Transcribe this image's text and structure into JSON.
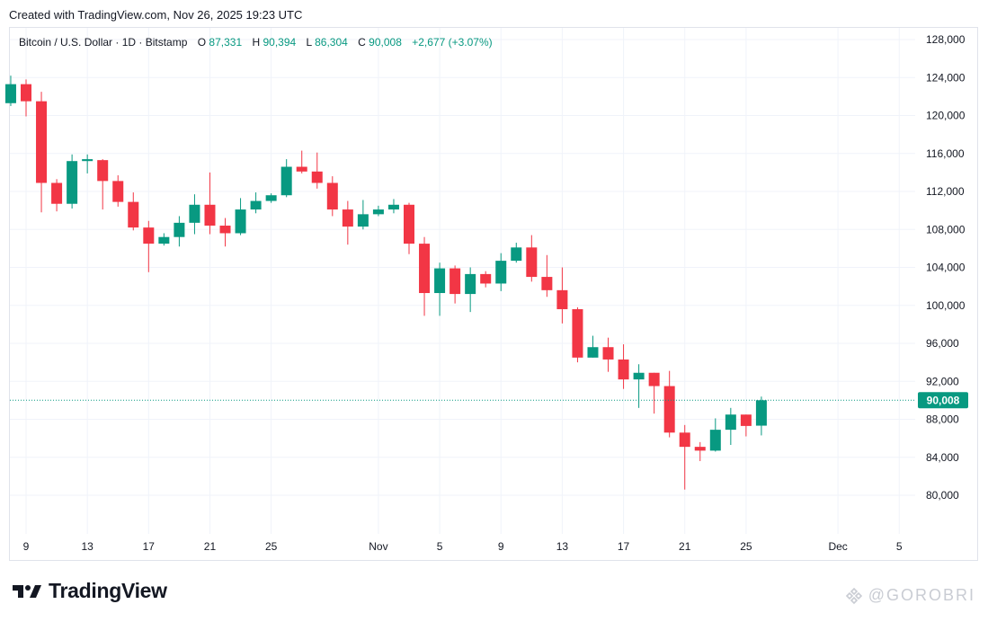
{
  "header": {
    "created_text": "Created with TradingView.com, Nov 26, 2025 19:23 UTC"
  },
  "legend": {
    "symbol": "Bitcoin / U.S. Dollar · 1D · Bitstamp",
    "o_label": "O",
    "o_value": "87,331",
    "h_label": "H",
    "h_value": "90,394",
    "l_label": "L",
    "l_value": "86,304",
    "c_label": "C",
    "c_value": "90,008",
    "change": "+2,677 (+3.07%)"
  },
  "price_label": "90,008",
  "branding": {
    "logo_text": "TradingView",
    "watermark_text": "@GOROBRI"
  },
  "colors": {
    "up": "#089981",
    "down": "#f23645",
    "grid": "#f0f3fa",
    "axis_text": "#131722"
  },
  "chart_data": {
    "type": "candlestick",
    "title": "Bitcoin / U.S. Dollar · 1D · Bitstamp",
    "ylim": [
      77000,
      130000
    ],
    "y_ticks": [
      80000,
      84000,
      88000,
      92000,
      96000,
      100000,
      104000,
      108000,
      112000,
      116000,
      120000,
      124000,
      128000
    ],
    "y_tick_labels": [
      "80,000",
      "84,000",
      "88,000",
      "92,000",
      "96,000",
      "100,000",
      "104,000",
      "108,000",
      "112,000",
      "116,000",
      "120,000",
      "124,000",
      "128,000"
    ],
    "x_ticks": [
      {
        "label": "9",
        "day": 9
      },
      {
        "label": "13",
        "day": 13
      },
      {
        "label": "17",
        "day": 17
      },
      {
        "label": "21",
        "day": 21
      },
      {
        "label": "25",
        "day": 25
      },
      {
        "label": "Nov",
        "day": 32
      },
      {
        "label": "5",
        "day": 36
      },
      {
        "label": "9",
        "day": 40
      },
      {
        "label": "13",
        "day": 44
      },
      {
        "label": "17",
        "day": 48
      },
      {
        "label": "21",
        "day": 52
      },
      {
        "label": "25",
        "day": 56
      },
      {
        "label": "Dec",
        "day": 62
      },
      {
        "label": "5",
        "day": 66
      }
    ],
    "last_price": 90008,
    "candles": [
      {
        "date": "Oct 8",
        "day": 8,
        "o": 121300,
        "h": 124200,
        "l": 121000,
        "c": 123300
      },
      {
        "date": "Oct 9",
        "day": 9,
        "o": 123300,
        "h": 123800,
        "l": 119900,
        "c": 121500
      },
      {
        "date": "Oct 10",
        "day": 10,
        "o": 121500,
        "h": 122500,
        "l": 109800,
        "c": 112900
      },
      {
        "date": "Oct 11",
        "day": 11,
        "o": 112900,
        "h": 113300,
        "l": 109900,
        "c": 110700
      },
      {
        "date": "Oct 12",
        "day": 12,
        "o": 110700,
        "h": 115900,
        "l": 110200,
        "c": 115200
      },
      {
        "date": "Oct 13",
        "day": 13,
        "o": 115200,
        "h": 115900,
        "l": 113900,
        "c": 115400
      },
      {
        "date": "Oct 14",
        "day": 14,
        "o": 115300,
        "h": 115400,
        "l": 110100,
        "c": 113100
      },
      {
        "date": "Oct 15",
        "day": 15,
        "o": 113100,
        "h": 113700,
        "l": 110400,
        "c": 110900
      },
      {
        "date": "Oct 16",
        "day": 16,
        "o": 110900,
        "h": 111900,
        "l": 107900,
        "c": 108200
      },
      {
        "date": "Oct 17",
        "day": 17,
        "o": 108200,
        "h": 108900,
        "l": 103500,
        "c": 106500
      },
      {
        "date": "Oct 18",
        "day": 18,
        "o": 106500,
        "h": 107600,
        "l": 106300,
        "c": 107200
      },
      {
        "date": "Oct 19",
        "day": 19,
        "o": 107200,
        "h": 109400,
        "l": 106200,
        "c": 108700
      },
      {
        "date": "Oct 20",
        "day": 20,
        "o": 108700,
        "h": 111700,
        "l": 107500,
        "c": 110600
      },
      {
        "date": "Oct 21",
        "day": 21,
        "o": 110600,
        "h": 114000,
        "l": 107500,
        "c": 108400
      },
      {
        "date": "Oct 22",
        "day": 22,
        "o": 108400,
        "h": 109200,
        "l": 106200,
        "c": 107600
      },
      {
        "date": "Oct 23",
        "day": 23,
        "o": 107600,
        "h": 111300,
        "l": 107400,
        "c": 110100
      },
      {
        "date": "Oct 24",
        "day": 24,
        "o": 110100,
        "h": 111900,
        "l": 109700,
        "c": 111000
      },
      {
        "date": "Oct 25",
        "day": 25,
        "o": 111000,
        "h": 111800,
        "l": 110800,
        "c": 111600
      },
      {
        "date": "Oct 26",
        "day": 26,
        "o": 111600,
        "h": 115400,
        "l": 111400,
        "c": 114600
      },
      {
        "date": "Oct 27",
        "day": 27,
        "o": 114600,
        "h": 116300,
        "l": 113900,
        "c": 114100
      },
      {
        "date": "Oct 28",
        "day": 28,
        "o": 114100,
        "h": 116100,
        "l": 112300,
        "c": 112900
      },
      {
        "date": "Oct 29",
        "day": 29,
        "o": 112900,
        "h": 113600,
        "l": 109400,
        "c": 110100
      },
      {
        "date": "Oct 30",
        "day": 30,
        "o": 110100,
        "h": 111000,
        "l": 106400,
        "c": 108300
      },
      {
        "date": "Oct 31",
        "day": 31,
        "o": 108300,
        "h": 111100,
        "l": 108000,
        "c": 109600
      },
      {
        "date": "Nov 1",
        "day": 32,
        "o": 109600,
        "h": 110500,
        "l": 109400,
        "c": 110100
      },
      {
        "date": "Nov 2",
        "day": 33,
        "o": 110100,
        "h": 111200,
        "l": 109700,
        "c": 110600
      },
      {
        "date": "Nov 3",
        "day": 34,
        "o": 110600,
        "h": 110800,
        "l": 105400,
        "c": 106500
      },
      {
        "date": "Nov 4",
        "day": 35,
        "o": 106500,
        "h": 107200,
        "l": 98900,
        "c": 101300
      },
      {
        "date": "Nov 5",
        "day": 36,
        "o": 101300,
        "h": 104500,
        "l": 98900,
        "c": 103900
      },
      {
        "date": "Nov 6",
        "day": 37,
        "o": 103900,
        "h": 104200,
        "l": 100200,
        "c": 101200
      },
      {
        "date": "Nov 7",
        "day": 38,
        "o": 101200,
        "h": 104000,
        "l": 99300,
        "c": 103300
      },
      {
        "date": "Nov 8",
        "day": 39,
        "o": 103300,
        "h": 103600,
        "l": 101900,
        "c": 102300
      },
      {
        "date": "Nov 9",
        "day": 40,
        "o": 102300,
        "h": 105500,
        "l": 101500,
        "c": 104700
      },
      {
        "date": "Nov 10",
        "day": 41,
        "o": 104700,
        "h": 106600,
        "l": 104500,
        "c": 106100
      },
      {
        "date": "Nov 11",
        "day": 42,
        "o": 106100,
        "h": 107400,
        "l": 102500,
        "c": 103000
      },
      {
        "date": "Nov 12",
        "day": 43,
        "o": 103000,
        "h": 105300,
        "l": 100900,
        "c": 101600
      },
      {
        "date": "Nov 13",
        "day": 44,
        "o": 101600,
        "h": 104000,
        "l": 98100,
        "c": 99600
      },
      {
        "date": "Nov 14",
        "day": 45,
        "o": 99600,
        "h": 99800,
        "l": 94000,
        "c": 94500
      },
      {
        "date": "Nov 15",
        "day": 46,
        "o": 94500,
        "h": 96800,
        "l": 94500,
        "c": 95600
      },
      {
        "date": "Nov 16",
        "day": 47,
        "o": 95600,
        "h": 96600,
        "l": 93000,
        "c": 94300
      },
      {
        "date": "Nov 17",
        "day": 48,
        "o": 94300,
        "h": 95900,
        "l": 91200,
        "c": 92200
      },
      {
        "date": "Nov 18",
        "day": 49,
        "o": 92200,
        "h": 93800,
        "l": 89200,
        "c": 92900
      },
      {
        "date": "Nov 19",
        "day": 50,
        "o": 92900,
        "h": 92900,
        "l": 88600,
        "c": 91500
      },
      {
        "date": "Nov 20",
        "day": 51,
        "o": 91500,
        "h": 93100,
        "l": 86100,
        "c": 86600
      },
      {
        "date": "Nov 21",
        "day": 52,
        "o": 86600,
        "h": 87400,
        "l": 80600,
        "c": 85100
      },
      {
        "date": "Nov 22",
        "day": 53,
        "o": 85100,
        "h": 85600,
        "l": 83600,
        "c": 84700
      },
      {
        "date": "Nov 23",
        "day": 54,
        "o": 84700,
        "h": 88100,
        "l": 84600,
        "c": 86900
      },
      {
        "date": "Nov 24",
        "day": 55,
        "o": 86900,
        "h": 89200,
        "l": 85300,
        "c": 88500
      },
      {
        "date": "Nov 25",
        "day": 56,
        "o": 88500,
        "h": 88500,
        "l": 86200,
        "c": 87300
      },
      {
        "date": "Nov 26",
        "day": 57,
        "o": 87331,
        "h": 90394,
        "l": 86304,
        "c": 90008
      }
    ]
  }
}
